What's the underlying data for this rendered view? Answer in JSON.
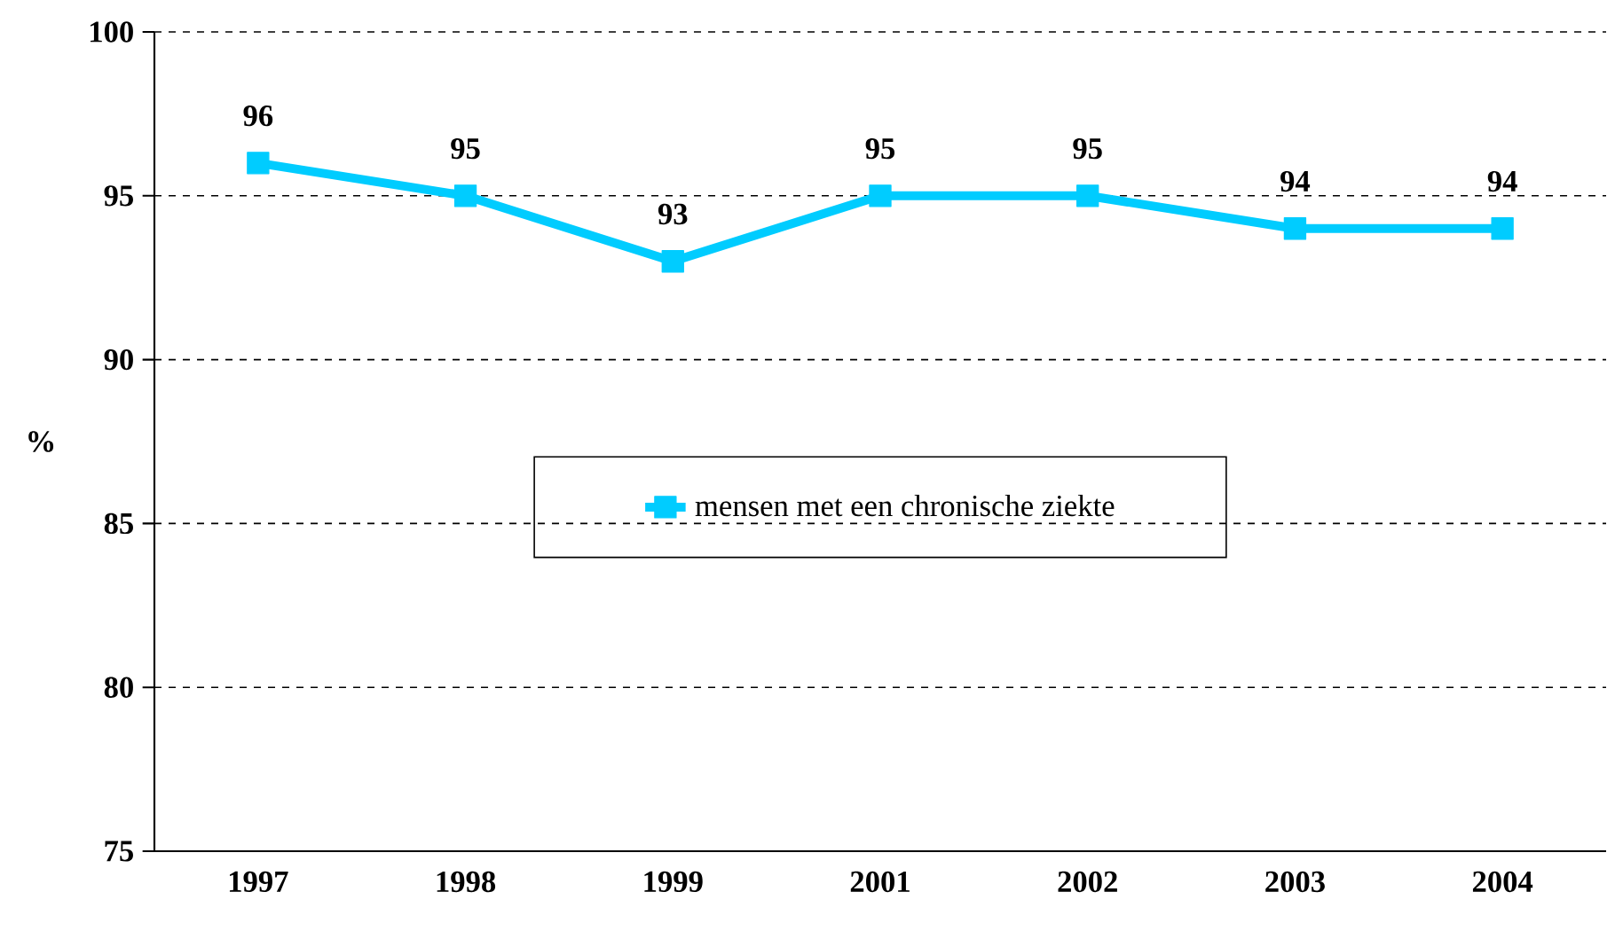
{
  "chart_data": {
    "type": "line",
    "ylabel": "%",
    "categories": [
      "1997",
      "1998",
      "1999",
      "2001",
      "2002",
      "2003",
      "2004"
    ],
    "series": [
      {
        "name": "mensen met een chronische ziekte",
        "color": "#00ccff",
        "values": [
          96,
          95,
          93,
          95,
          95,
          94,
          94
        ]
      }
    ],
    "ylim": [
      75,
      100
    ],
    "yticks": [
      75,
      80,
      85,
      90,
      95,
      100
    ],
    "grid": "y",
    "legend": "center",
    "marker": "square",
    "line_style": "solid",
    "data_labels": true
  }
}
